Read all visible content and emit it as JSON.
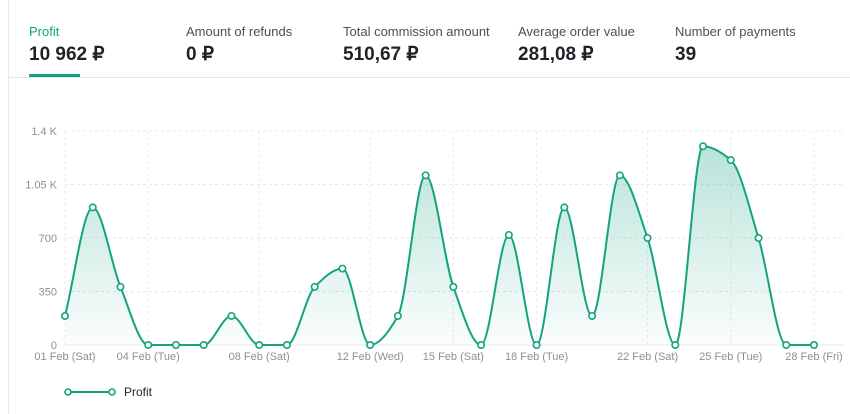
{
  "metrics": [
    {
      "label": "Profit",
      "value": "10 962 ₽"
    },
    {
      "label": "Amount of refunds",
      "value": "0 ₽"
    },
    {
      "label": "Total commission amount",
      "value": "510,67 ₽"
    },
    {
      "label": "Average order value",
      "value": "281,08 ₽"
    },
    {
      "label": "Number of payments",
      "value": "39"
    }
  ],
  "active_metric": "Profit",
  "colors": {
    "accent": "#14a37f",
    "grid": "#e8eaed",
    "text_muted": "#8a9099"
  },
  "chart_data": {
    "type": "area",
    "x": [
      "01 Feb (Sat)",
      "02 Feb",
      "03 Feb",
      "04 Feb (Tue)",
      "05 Feb",
      "06 Feb",
      "07 Feb",
      "08 Feb (Sat)",
      "09 Feb",
      "10 Feb",
      "11 Feb",
      "12 Feb (Wed)",
      "13 Feb",
      "14 Feb",
      "15 Feb (Sat)",
      "16 Feb",
      "17 Feb",
      "18 Feb (Tue)",
      "19 Feb",
      "20 Feb",
      "21 Feb",
      "22 Feb (Sat)",
      "23 Feb",
      "24 Feb",
      "25 Feb (Tue)",
      "26 Feb",
      "27 Feb",
      "28 Feb (Fri)"
    ],
    "x_tick_labels": [
      "01 Feb (Sat)",
      "04 Feb (Tue)",
      "08 Feb (Sat)",
      "12 Feb (Wed)",
      "15 Feb (Sat)",
      "18 Feb (Tue)",
      "22 Feb (Sat)",
      "25 Feb (Tue)",
      "28 Feb (Fri)"
    ],
    "x_tick_indices": [
      0,
      3,
      7,
      11,
      14,
      17,
      21,
      24,
      27
    ],
    "series": [
      {
        "name": "Profit",
        "values": [
          190,
          900,
          380,
          0,
          0,
          0,
          190,
          0,
          0,
          380,
          500,
          0,
          190,
          1110,
          380,
          0,
          720,
          0,
          900,
          190,
          1110,
          700,
          0,
          1300,
          1210,
          700,
          0,
          0
        ]
      }
    ],
    "ylim": [
      0,
      1400
    ],
    "y_ticks": [
      0,
      350,
      700,
      1050,
      1400
    ],
    "y_tick_labels": [
      "0",
      "350",
      "700",
      "1.05 K",
      "1.4 K"
    ],
    "grid": true,
    "legend_position": "bottom-left"
  }
}
